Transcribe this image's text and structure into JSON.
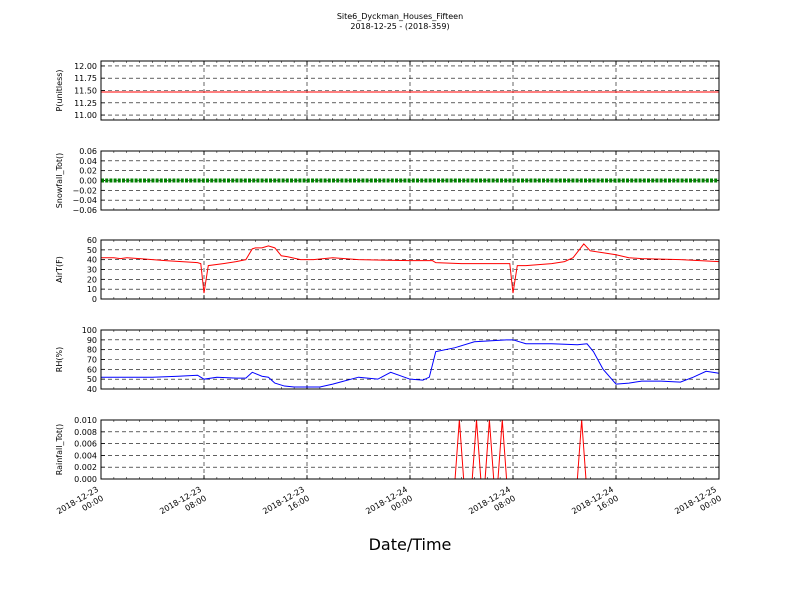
{
  "figure": {
    "title": "Site6_Dyckman_Houses_Fifteen",
    "subtitle": "2018-12-25 - (2018-359)",
    "xlabel": "Date/Time"
  },
  "chart_data": [
    {
      "type": "line",
      "ylabel": "P(unitless)",
      "color": "#ff0000",
      "ylim": [
        10.9,
        12.1
      ],
      "yticks": [
        "12.00",
        "11.75",
        "11.50",
        "11.25",
        "11.00"
      ],
      "ytick_values": [
        12.0,
        11.75,
        11.5,
        11.25,
        11.0
      ],
      "xlim": [
        "2018-12-23T00:00",
        "2018-12-25T00:00"
      ],
      "xticks": [
        [
          "2018-12-23",
          "00:00"
        ],
        [
          "2018-12-23",
          "08:00"
        ],
        [
          "2018-12-23",
          "16:00"
        ],
        [
          "2018-12-24",
          "00:00"
        ],
        [
          "2018-12-24",
          "08:00"
        ],
        [
          "2018-12-24",
          "16:00"
        ],
        [
          "2018-12-25",
          "00:00"
        ]
      ],
      "grid": true,
      "x": [
        "2018-12-23T00:00",
        "2018-12-25T00:00"
      ],
      "y": [
        11.47,
        11.47
      ]
    },
    {
      "type": "scatter",
      "ylabel": "Snowfall_Tot()",
      "color": "#008000",
      "ylim": [
        -0.06,
        0.06
      ],
      "yticks": [
        "0.06",
        "0.04",
        "0.02",
        "0.00",
        "−0.02",
        "−0.04",
        "−0.06"
      ],
      "ytick_values": [
        0.06,
        0.04,
        0.02,
        0.0,
        -0.02,
        -0.04,
        -0.06
      ],
      "xlim": [
        "2018-12-23T00:00",
        "2018-12-25T00:00"
      ],
      "grid": true,
      "note_value": 0.0
    },
    {
      "type": "line",
      "ylabel": "AirT(F)",
      "color": "#ff0000",
      "ylim": [
        0,
        60
      ],
      "yticks": [
        "60",
        "50",
        "40",
        "30",
        "20",
        "10",
        "0"
      ],
      "ytick_values": [
        60,
        50,
        40,
        30,
        20,
        10,
        0
      ],
      "xlim": [
        "2018-12-23T00:00",
        "2018-12-25T00:00"
      ],
      "grid": true,
      "x": [
        "2018-12-23T00:00",
        "2018-12-23T01:00",
        "2018-12-23T01:30",
        "2018-12-23T02:00",
        "2018-12-23T03:00",
        "2018-12-23T05:00",
        "2018-12-23T07:30",
        "2018-12-23T07:45",
        "2018-12-23T08:00",
        "2018-12-23T08:20",
        "2018-12-23T09:30",
        "2018-12-23T10:30",
        "2018-12-23T11:15",
        "2018-12-23T11:45",
        "2018-12-23T12:00",
        "2018-12-23T12:30",
        "2018-12-23T13:00",
        "2018-12-23T13:30",
        "2018-12-23T14:00",
        "2018-12-23T14:30",
        "2018-12-23T15:30",
        "2018-12-23T16:30",
        "2018-12-23T18:00",
        "2018-12-23T20:00",
        "2018-12-24T00:00",
        "2018-12-24T01:45",
        "2018-12-24T02:00",
        "2018-12-24T04:00",
        "2018-12-24T07:45",
        "2018-12-24T08:00",
        "2018-12-24T08:20",
        "2018-12-24T09:00",
        "2018-12-24T10:00",
        "2018-12-24T11:00",
        "2018-12-24T12:00",
        "2018-12-24T12:40",
        "2018-12-24T13:30",
        "2018-12-24T14:00",
        "2018-12-24T15:00",
        "2018-12-24T16:00",
        "2018-12-24T17:00",
        "2018-12-24T18:00",
        "2018-12-24T21:00",
        "2018-12-25T00:00"
      ],
      "y": [
        42,
        42,
        41,
        42,
        41,
        39,
        37,
        36,
        6,
        34,
        36,
        38,
        40,
        51,
        52,
        52,
        54,
        52,
        44,
        43,
        40,
        40,
        42,
        40,
        39,
        39,
        37,
        36,
        36,
        6,
        34,
        34,
        35,
        36,
        38,
        42,
        56,
        49,
        47,
        45,
        42,
        41,
        40,
        38
      ]
    },
    {
      "type": "line",
      "ylabel": "RH(%)",
      "color": "#0000ff",
      "ylim": [
        40,
        100
      ],
      "yticks": [
        "100",
        "90",
        "80",
        "70",
        "60",
        "50",
        "40"
      ],
      "ytick_values": [
        100,
        90,
        80,
        70,
        60,
        50,
        40
      ],
      "xlim": [
        "2018-12-23T00:00",
        "2018-12-25T00:00"
      ],
      "grid": true,
      "x": [
        "2018-12-23T00:00",
        "2018-12-23T01:00",
        "2018-12-23T02:00",
        "2018-12-23T04:00",
        "2018-12-23T06:00",
        "2018-12-23T07:30",
        "2018-12-23T08:00",
        "2018-12-23T09:00",
        "2018-12-23T10:30",
        "2018-12-23T11:15",
        "2018-12-23T11:45",
        "2018-12-23T12:30",
        "2018-12-23T13:00",
        "2018-12-23T13:30",
        "2018-12-23T14:15",
        "2018-12-23T15:00",
        "2018-12-23T16:00",
        "2018-12-23T17:00",
        "2018-12-23T18:00",
        "2018-12-23T20:00",
        "2018-12-23T21:30",
        "2018-12-23T22:30",
        "2018-12-24T00:00",
        "2018-12-24T01:00",
        "2018-12-24T01:30",
        "2018-12-24T02:00",
        "2018-12-24T03:30",
        "2018-12-24T05:00",
        "2018-12-24T07:30",
        "2018-12-24T08:00",
        "2018-12-24T09:00",
        "2018-12-24T11:00",
        "2018-12-24T13:00",
        "2018-12-24T13:45",
        "2018-12-24T14:15",
        "2018-12-24T15:00",
        "2018-12-24T16:00",
        "2018-12-24T17:00",
        "2018-12-24T18:00",
        "2018-12-24T19:30",
        "2018-12-24T21:00",
        "2018-12-24T22:00",
        "2018-12-24T23:00",
        "2018-12-25T00:00"
      ],
      "y": [
        52,
        52,
        52,
        52,
        53,
        54,
        50,
        52,
        51,
        51,
        57,
        53,
        52,
        46,
        43,
        42,
        42,
        42,
        45,
        52,
        50,
        57,
        50,
        49,
        52,
        78,
        82,
        88,
        90,
        90,
        86,
        86,
        85,
        86,
        78,
        60,
        45,
        46,
        48,
        48,
        47,
        52,
        58,
        56
      ]
    },
    {
      "type": "line",
      "ylabel": "Rainfall_Tot()",
      "color": "#ff0000",
      "ylim": [
        0,
        0.01
      ],
      "yticks": [
        "0.010",
        "0.008",
        "0.006",
        "0.004",
        "0.002",
        "0.000"
      ],
      "ytick_values": [
        0.01,
        0.008,
        0.006,
        0.004,
        0.002,
        0.0
      ],
      "xlim": [
        "2018-12-23T00:00",
        "2018-12-25T00:00"
      ],
      "grid": true,
      "x": [
        "2018-12-23T00:00",
        "2018-12-24T03:30",
        "2018-12-24T03:50",
        "2018-12-24T04:10",
        "2018-12-24T04:50",
        "2018-12-24T05:10",
        "2018-12-24T05:30",
        "2018-12-24T05:50",
        "2018-12-24T06:10",
        "2018-12-24T06:30",
        "2018-12-24T06:50",
        "2018-12-24T07:10",
        "2018-12-24T07:30",
        "2018-12-24T13:00",
        "2018-12-24T13:20",
        "2018-12-24T13:40",
        "2018-12-25T00:00"
      ],
      "y": [
        0,
        0,
        0.01,
        0,
        0,
        0.01,
        0,
        0,
        0.01,
        0,
        0,
        0.01,
        0,
        0,
        0.01,
        0,
        0
      ]
    }
  ]
}
